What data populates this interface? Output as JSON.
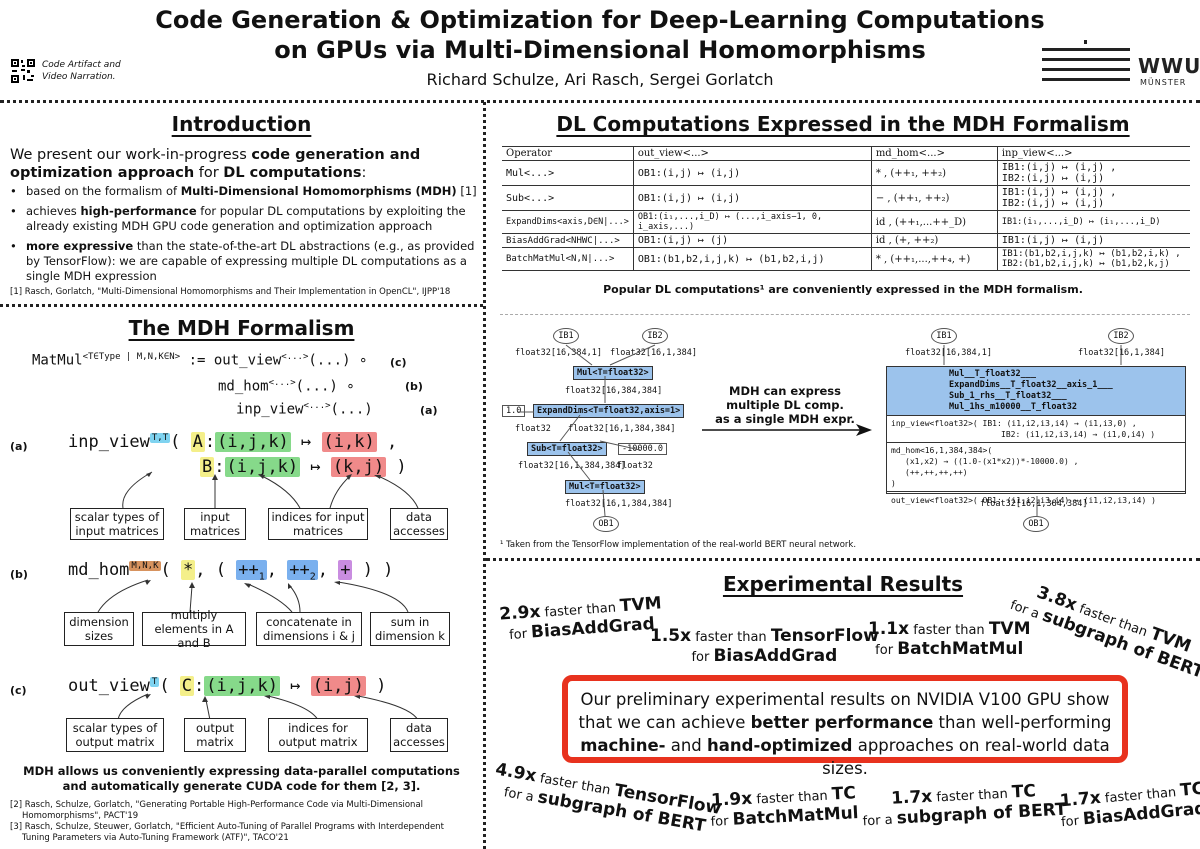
{
  "header": {
    "title1": "Code Generation & Optimization for Deep-Learning Computations",
    "title2": "on GPUs via Multi-Dimensional Homomorphisms",
    "authors": "Richard Schulze, Ari Rasch, Sergei Gorlatch",
    "qr_caption1": "Code Artifact and",
    "qr_caption2": "Video Narration.",
    "logo_text": "WWU",
    "logo_sub": "MÜNSTER"
  },
  "intro": {
    "title": "Introduction",
    "lead1": "We present our work-in-progress ",
    "lead_b": "code generation and optimization approach",
    "lead2": " for ",
    "lead_b2": "DL computations",
    "lead3": ":",
    "b1a": "based on the formalism of ",
    "b1b": "Multi-Dimensional Homomorphisms (MDH)",
    "b1c": " [1]",
    "b2a": "achieves ",
    "b2b": "high-performance",
    "b2c": " for popular DL computations by exploiting the already existing MDH GPU code generation and optimization approach",
    "b3a": "more expressive",
    "b3b": " than the state-of-the-art DL abstractions (e.g., as provided by TensorFlow): we are capable of expressing multiple DL computations as a single MDH expression",
    "ref1": "[1] Rasch, Gorlatch, \"Multi-Dimensional Homomorphisms and Their Implementation in OpenCL\", IJPP'18"
  },
  "mdh": {
    "title": "The MDH Formalism",
    "matmul": "MatMul",
    "matmul_sup": "<T∈Type | M,N,K∈N>",
    "def": ":= out_view",
    "ang": "<...>",
    "dots": "(...) ∘",
    "dots2": "(...)",
    "md_hom": "md_hom",
    "inp_view": "inp_view",
    "out_view": "out_view",
    "c": "(c)",
    "b": "(b)",
    "a": "(a)",
    "a_sup": "T,T",
    "b_sup": "M,N,K",
    "c_sup": "T",
    "A": "A",
    "B": "B",
    "C": "C",
    "ijk": "(i,j,k)",
    "ik": "(i,k)",
    "kj": "(k,j)",
    "ij": "(i,j)",
    "maps": "↦",
    "star": "*",
    "pp1": "++",
    "pp2": "++",
    "plus": "+",
    "sub1": "1",
    "sub2": "2",
    "labels_a": [
      "scalar types of input matrices",
      "input matrices",
      "indices for input matrices",
      "data accesses"
    ],
    "labels_b": [
      "dimension sizes",
      "multiply elements in A and B",
      "concatenate in dimensions i & j",
      "sum in dimension k"
    ],
    "labels_c": [
      "scalar types of output matrix",
      "output matrix",
      "indices for output matrix",
      "data accesses"
    ],
    "summary1": "MDH allows us conveniently expressing data-parallel computations",
    "summary2": "and automatically generate CUDA code for them [2, 3].",
    "ref2a": "[2] Rasch, Schulze, Gorlatch, \"Generating Portable High-Performance Code via Multi-Dimensional",
    "ref2b": "Homomorphisms\", PACT'19",
    "ref3a": "[3] Rasch, Schulze, Steuwer, Gorlatch, \"Efficient Auto-Tuning of Parallel Programs with Interdependent",
    "ref3b": "Tuning Parameters via Auto-Tuning Framework (ATF)\", TACO'21"
  },
  "dl": {
    "title": "DL Computations Expressed in the MDH Formalism",
    "headers": [
      "Operator",
      "out_view<...>",
      "md_hom<...>",
      "inp_view<...>"
    ],
    "rows": [
      {
        "op": "Mul<...>",
        "out": "OB1:(i,j) ↦ (i,j)",
        "hom": "* , (++₁, ++₂)",
        "inp": [
          "IB1:(i,j) ↦ (i,j) ,",
          "IB2:(i,j) ↦ (i,j)"
        ]
      },
      {
        "op": "Sub<...>",
        "out": "OB1:(i,j) ↦ (i,j)",
        "hom": "− , (++₁, ++₂)",
        "inp": [
          "IB1:(i,j) ↦ (i,j) ,",
          "IB2:(i,j) ↦ (i,j)"
        ]
      },
      {
        "op": "ExpandDims<axis,D∈N|...>",
        "out": "OB1:(i₁,...,i_D) ↦ (...,i_axis−1, 0, i_axis,...)",
        "hom": "id , (++₁,...++_D)",
        "inp": [
          "IB1:(i₁,...,i_D) ↦ (i₁,...,i_D)"
        ]
      },
      {
        "op": "BiasAddGrad<NHWC|...>",
        "out": "OB1:(i,j) ↦ (j)",
        "hom": "id , (+, ++₂)",
        "inp": [
          "IB1:(i,j) ↦ (i,j)"
        ]
      },
      {
        "op": "BatchMatMul<N,N|...>",
        "out": "OB1:(b1,b2,i,j,k) ↦ (b1,b2,i,j)",
        "hom": "* , (++₁,...,++₄, +)",
        "inp": [
          "IB1:(b1,b2,i,j,k) ↦ (b1,b2,i,k) ,",
          "IB2:(b1,b2,i,j,k) ↦ (b1,b2,k,j)"
        ]
      }
    ],
    "caption": "Popular DL computations¹ are conveniently expressed in the MDH formalism.",
    "footnote": "¹ Taken from the TensorFlow implementation of the real-world BERT neural network.",
    "g": {
      "ib1": "IB1",
      "ib2": "IB2",
      "ob1": "OB1",
      "t1": "float32[16,384,1]",
      "t2": "float32[16,1,384]",
      "t3": "float32[16,384,384]",
      "t4": "float32",
      "t5": "float32[16,1,384,384]",
      "t6": "float32",
      "t7": "float32[16,1,384,384]",
      "mul1": "Mul<T=float32>",
      "expand": "ExpandDims<T=float32,axis=1>",
      "sub": "Sub<T=float32>",
      "mul2": "Mul<T=float32>",
      "c1": "1.0",
      "c2": "-10000.0",
      "arrow1": "MDH can express",
      "arrow2": "multiple DL comp.",
      "arrow3": "as a single MDH expr.",
      "rt1": "float32[16,384,1]",
      "rt2": "float32[16,1,384]",
      "rt3": "float32[16,1,384,384]",
      "fused": [
        "Mul__T_float32___",
        "ExpandDims__T_float32__axis_1___",
        "Sub_1_rhs__T_float32___",
        "Mul_1hs_m10000__T_float32"
      ],
      "inp1": "inp_view<float32>( IB1: (i1,i2,i3,i4) → (i1,i3,0) ,",
      "inp2": "IB2: (i1,i2,i3,i4) → (i1,0,i4) )",
      "hom1": "md_hom<16,1,384,384>(",
      "hom2": "(x1,x2) → ((1.0-(x1*x2))*-10000.0) ,",
      "hom3": "(++,++,++,++)",
      "hom4": ")",
      "outv": "out_view<float32>( OB1: (i1,i2,i3,i4) → (i1,i2,i3,i4) )"
    }
  },
  "exp": {
    "title": "Experimental Results",
    "r1": {
      "x": "2.9x",
      "t": "faster than",
      "s": "TVM",
      "f": "for",
      "o": "BiasAddGrad"
    },
    "r2": {
      "x": "1.5x",
      "t": "faster than",
      "s": "TensorFlow",
      "f": "for",
      "o": "BiasAddGrad"
    },
    "r3": {
      "x": "1.1x",
      "t": "faster than",
      "s": "TVM",
      "f": "for",
      "o": "BatchMatMul"
    },
    "r4": {
      "x": "3.8x",
      "t": "faster than",
      "s": "TVM",
      "f": "for a",
      "o": "subgraph of BERT"
    },
    "r5": {
      "x": "4.9x",
      "t": "faster than",
      "s": "TensorFlow",
      "f": "for a",
      "o": "subgraph of BERT"
    },
    "r6": {
      "x": "1.9x",
      "t": "faster than",
      "s": "TC",
      "f": "for",
      "o": "BatchMatMul"
    },
    "r7": {
      "x": "1.7x",
      "t": "faster than",
      "s": "TC",
      "f": "for a",
      "o": "subgraph of BERT"
    },
    "r8": {
      "x": "1.7x",
      "t": "faster than",
      "s": "TC",
      "f": "for",
      "o": "BiasAddGrad"
    },
    "box1": "Our preliminary experimental results on NVIDIA V100 GPU show",
    "box2a": "that we can achieve ",
    "box2b": "better performance",
    "box2c": " than well-performing",
    "box3a": "machine-",
    "box3b": " and ",
    "box3c": "hand-optimized",
    "box3d": " approaches on real-world data sizes.",
    "accent": "#e8321e"
  }
}
